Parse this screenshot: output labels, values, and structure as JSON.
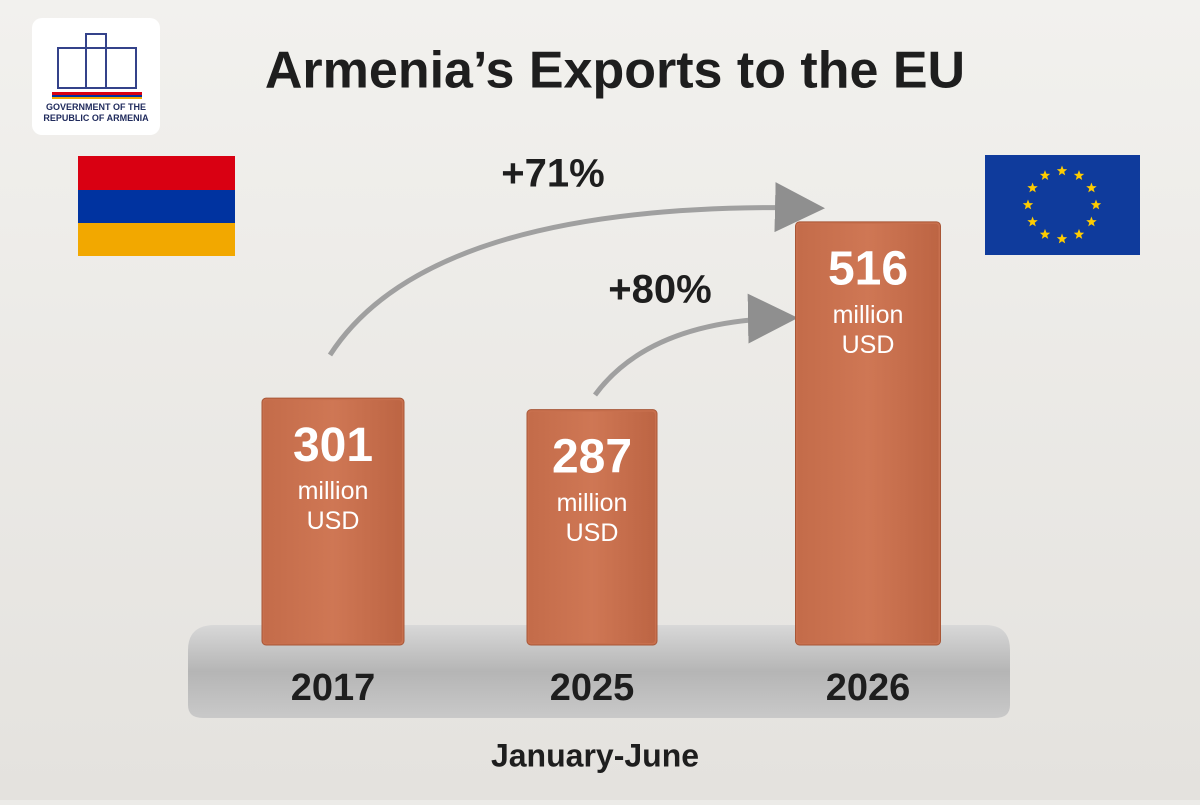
{
  "logo": {
    "text": "GOVERNMENT OF THE REPUBLIC OF ARMENIA"
  },
  "chart_data": {
    "type": "bar",
    "title": "Armenia’s Exports to the EU",
    "categories": [
      "2017",
      "2025",
      "2026"
    ],
    "values": [
      301,
      287,
      516
    ],
    "unit": "million USD",
    "color": "#c8704e",
    "annotations": [
      "+71%",
      "+80%"
    ],
    "x_label": "January-June"
  }
}
